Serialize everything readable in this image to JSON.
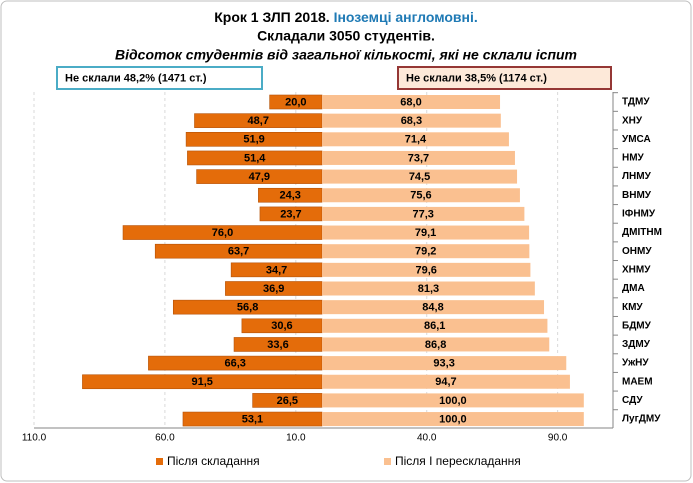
{
  "chart_data": {
    "type": "diverging-bar",
    "title": "Крок 1 ЗЛП 2018.",
    "title_highlight": "Іноземці англомовні.",
    "subtitle": "Складали 3050 студентів.",
    "subtitle2": "Відсоток студентів від загальної кількості, які не склали іспит",
    "annotations": [
      {
        "text": "Не склали 48,2% (1471 ст.)",
        "border": "#4bacc6",
        "fill": "#ffffff"
      },
      {
        "text": "Не склали  38,5% (1174 ст.)",
        "border": "#953735",
        "fill": "#fde9d9"
      }
    ],
    "categories": [
      "ТДМУ",
      "ХНУ",
      "УМСА",
      "НМУ",
      "ЛНМУ",
      "ВНМУ",
      "ІФНМУ",
      "ДМІТНМ",
      "ОНМУ",
      "ХНМУ",
      "ДМА",
      "КМУ",
      "БДМУ",
      "ЗДМУ",
      "УжНУ",
      "МАЕМ",
      "СДУ",
      "ЛугДМУ"
    ],
    "series": [
      {
        "name": "Після складання",
        "color": "#e46c0a",
        "direction": "left",
        "values": [
          20,
          48.7,
          51.9,
          51.4,
          47.9,
          24.3,
          23.7,
          76,
          63.7,
          34.7,
          36.9,
          56.8,
          30.6,
          33.6,
          66.3,
          91.5,
          26.5,
          53.1
        ],
        "value_labels": [
          "20,0",
          "48,7",
          "51,9",
          "51,4",
          "47,9",
          "24,3",
          "23,7",
          "76,0",
          "63,7",
          "34,7",
          "36,9",
          "56,8",
          "30,6",
          "33,6",
          "66,3",
          "91,5",
          "26,5",
          "53,1"
        ]
      },
      {
        "name": "Після І перескладання",
        "color": "#fac090",
        "direction": "right",
        "values": [
          68,
          68.3,
          71.4,
          73.7,
          74.5,
          75.6,
          77.3,
          79.1,
          79.2,
          79.6,
          81.3,
          84.8,
          86.1,
          86.8,
          93.3,
          94.7,
          100,
          100
        ],
        "value_labels": [
          "68,0",
          "68,3",
          "71,4",
          "73,7",
          "74,5",
          "75,6",
          "77,3",
          "79,1",
          "79,2",
          "79,6",
          "81,3",
          "84,8",
          "86,1",
          "86,8",
          "93,3",
          "94,7",
          "100,0",
          "100,0"
        ]
      }
    ],
    "xlim": [
      -110,
      110
    ],
    "xticks": [
      {
        "value": -110,
        "label": "110.0"
      },
      {
        "value": -60,
        "label": "60.0"
      },
      {
        "value": -10,
        "label": "10.0"
      },
      {
        "value": 40,
        "label": "40.0"
      },
      {
        "value": 90,
        "label": "90.0"
      }
    ],
    "grid": true
  }
}
